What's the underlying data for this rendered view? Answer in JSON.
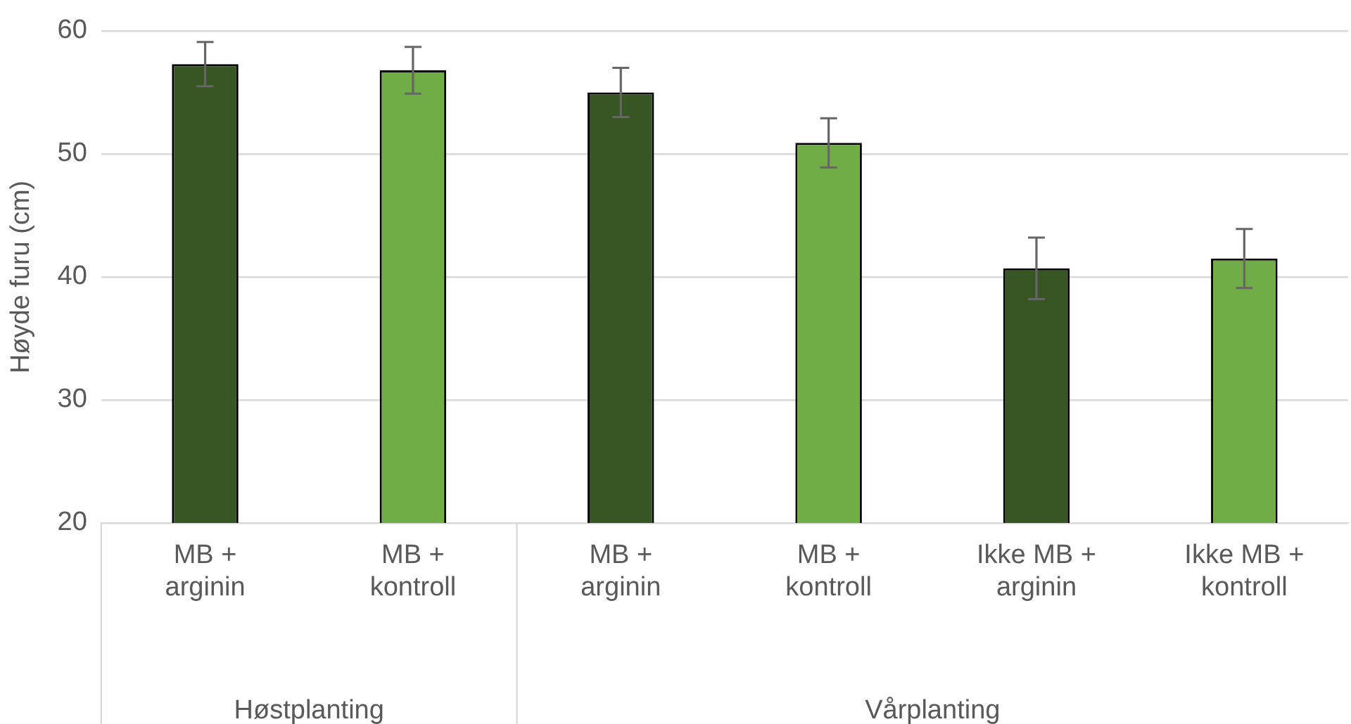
{
  "chart_data": {
    "type": "bar",
    "ylabel": "Høyde furu (cm)",
    "categories": [
      "MB + arginin",
      "MB + kontroll",
      "MB + arginin",
      "MB + kontroll",
      "Ikke MB + arginin",
      "Ikke MB + kontroll"
    ],
    "values": [
      57.3,
      56.8,
      55.0,
      50.9,
      40.7,
      41.5
    ],
    "errors": [
      1.8,
      1.9,
      2.0,
      2.0,
      2.5,
      2.4
    ],
    "colors": [
      "#375623",
      "#70ad47",
      "#375623",
      "#70ad47",
      "#375623",
      "#70ad47"
    ],
    "annotations": [
      "Høstplanting",
      "Vårplanting"
    ],
    "ylim": [
      20,
      60
    ],
    "yticks": [
      20,
      30,
      40,
      50,
      60
    ],
    "grid": "y"
  }
}
